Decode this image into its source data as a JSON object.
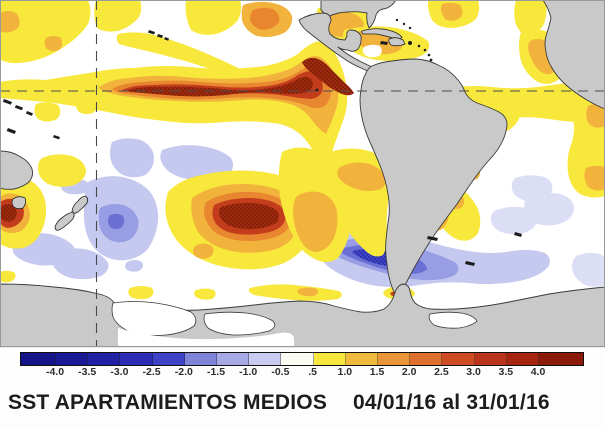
{
  "caption": {
    "title": "SST APARTAMIENTOS MEDIOS",
    "date_range": "04/01/16 al 31/01/16"
  },
  "colorbar": {
    "tick_labels": [
      "-4.0",
      "-3.5",
      "-3.0",
      "-2.5",
      "-2.0",
      "-1.5",
      "-1.0",
      "-0.5",
      ".5",
      "1.0",
      "1.5",
      "2.0",
      "2.5",
      "3.0",
      "3.5",
      "4.0"
    ],
    "segment_colors": [
      "#151589",
      "#1a1a96",
      "#2121a4",
      "#2b2bb4",
      "#3e42c6",
      "#8084d8",
      "#a6aae4",
      "#c9cbf0",
      "#fbfbf2",
      "#f6e63e",
      "#f0ba3e",
      "#e99538",
      "#de6f2e",
      "#cd4c24",
      "#bb351c",
      "#a62511",
      "#8c1a0a"
    ]
  },
  "palette": {
    "land": "#c9c9c9",
    "coastline": "#3a3a3a",
    "ocean": "#ffffff",
    "gridline": "#4a4a4a",
    "warm_yellow": "#f8e83c",
    "warm_gold": "#f2b33c",
    "warm_orange": "#e8872f",
    "warm_red": "#c33d1d",
    "warm_dark_red": "#a02a0e",
    "cold_pale": "#dcdef5",
    "cold_light": "#c5c8ef",
    "cold_medium": "#989ee3",
    "cold_blue": "#6a6fd3",
    "cold_dark_blue": "#3f44c5",
    "text": "#1c1c1c"
  }
}
